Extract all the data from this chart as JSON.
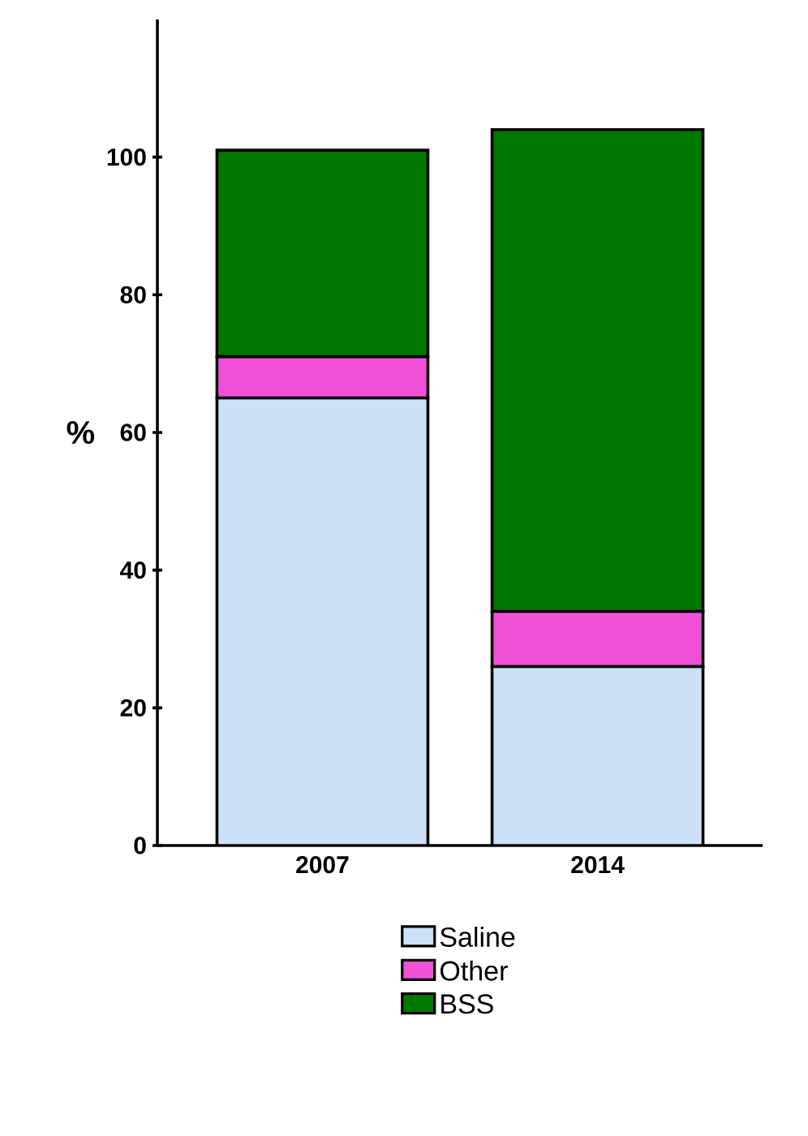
{
  "chart_data": {
    "type": "bar",
    "stacked": true,
    "ylabel": "%",
    "categories": [
      "2007",
      "2014"
    ],
    "series": [
      {
        "name": "Saline",
        "color": "#cce0f8",
        "values": [
          65,
          26
        ]
      },
      {
        "name": "Other",
        "color": "#f050d8",
        "values": [
          6,
          8
        ]
      },
      {
        "name": "BSS",
        "color": "#007800",
        "values": [
          30,
          70
        ]
      }
    ],
    "ylim": [
      0,
      120
    ],
    "yticks": [
      0,
      20,
      40,
      60,
      80,
      100
    ],
    "legend": "bottom",
    "grid": false
  }
}
